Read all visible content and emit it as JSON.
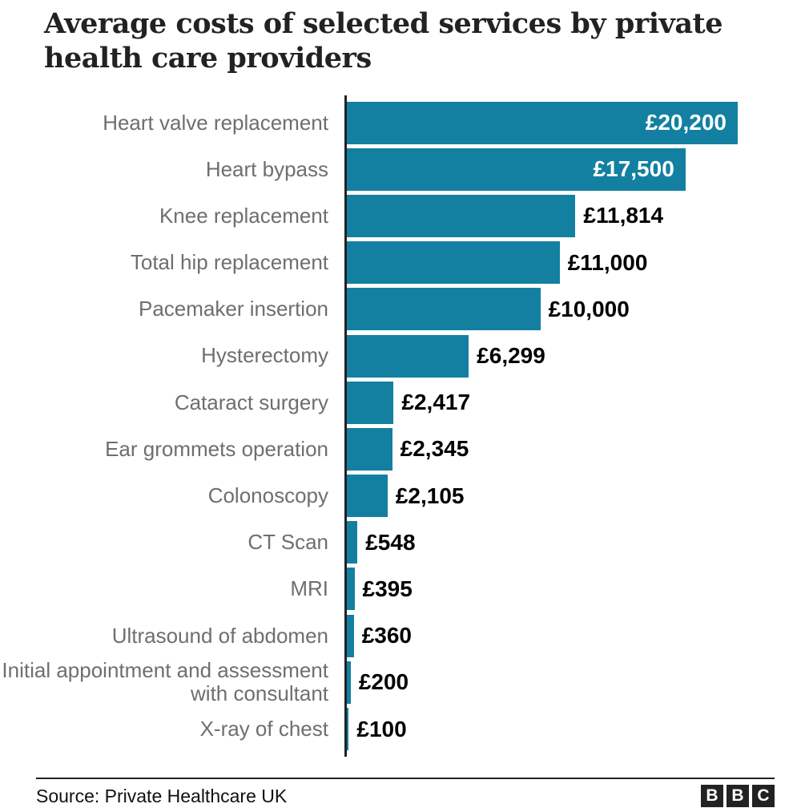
{
  "title": "Average costs of selected services by private health care providers",
  "chart_data": {
    "type": "bar",
    "orientation": "horizontal",
    "title": "Average costs of selected services by private health care providers",
    "xlabel": "",
    "ylabel": "",
    "xlim": [
      0,
      20200
    ],
    "grid": false,
    "legend": "none",
    "currency": "GBP",
    "bar_color": "#1380A1",
    "categories": [
      "Heart valve replacement",
      "Heart bypass",
      "Knee replacement",
      "Total hip replacement",
      "Pacemaker insertion",
      "Hysterectomy",
      "Cataract surgery",
      "Ear grommets operation",
      "Colonoscopy",
      "CT Scan",
      "MRI",
      "Ultrasound of abdomen",
      "Initial appointment and assessment with consultant",
      "X-ray of chest"
    ],
    "values": [
      20200,
      17500,
      11814,
      11000,
      10000,
      6299,
      2417,
      2345,
      2105,
      548,
      395,
      360,
      200,
      100
    ],
    "value_labels": [
      "£20,200",
      "£17,500",
      "£11,814",
      "£11,000",
      "£10,000",
      "£6,299",
      "£2,417",
      "£2,345",
      "£2,105",
      "£548",
      "£395",
      "£360",
      "£200",
      "£100"
    ]
  },
  "footer": {
    "source": "Source: Private Healthcare UK"
  },
  "logo": {
    "letters": [
      "B",
      "B",
      "C"
    ]
  },
  "colors": {
    "bar": "#1380A1",
    "category_label": "#6e6e73",
    "value_inside": "#ffffff",
    "value_outside": "#000000",
    "axis": "#222222",
    "title": "#222222",
    "logo_block": "#222222"
  }
}
